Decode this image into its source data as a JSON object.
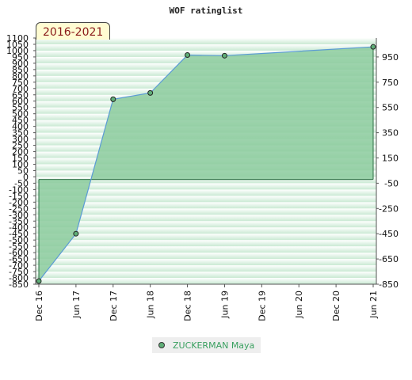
{
  "chart_data": {
    "type": "area",
    "title": "WOF ratinglist",
    "badge": "2016-2021",
    "x": [
      "Dec 16",
      "Jun 17",
      "Dec 17",
      "Jun 18",
      "Dec 18",
      "Jun 19",
      "Jun 21"
    ],
    "x_ticks": [
      "Dec 16",
      "Jun 17",
      "Dec 17",
      "Jun 18",
      "Dec 18",
      "Jun 19",
      "Dec 19",
      "Jun 20",
      "Dec 20",
      "Jun 21"
    ],
    "series": [
      {
        "name": "ZUCKERMAN Maya",
        "values": [
          -825,
          -450,
          615,
          665,
          965,
          960,
          1030
        ]
      }
    ],
    "ylim": [
      -850,
      1100
    ],
    "y_ticks_left": [
      1100,
      1050,
      1000,
      950,
      900,
      850,
      800,
      750,
      700,
      650,
      600,
      550,
      500,
      450,
      400,
      350,
      300,
      250,
      200,
      150,
      100,
      50,
      0,
      -50,
      -100,
      -150,
      -200,
      -250,
      -300,
      -350,
      -400,
      -450,
      -500,
      -550,
      -600,
      -650,
      -700,
      -750,
      -800,
      -850
    ],
    "y_ticks_right": [
      950,
      750,
      550,
      350,
      150,
      -50,
      -250,
      -450,
      -650,
      -850
    ],
    "legend_position": "bottom",
    "colors": {
      "fill": "#8ccb9e",
      "line": "#5b9bd5",
      "marker": "#5fae77"
    }
  }
}
